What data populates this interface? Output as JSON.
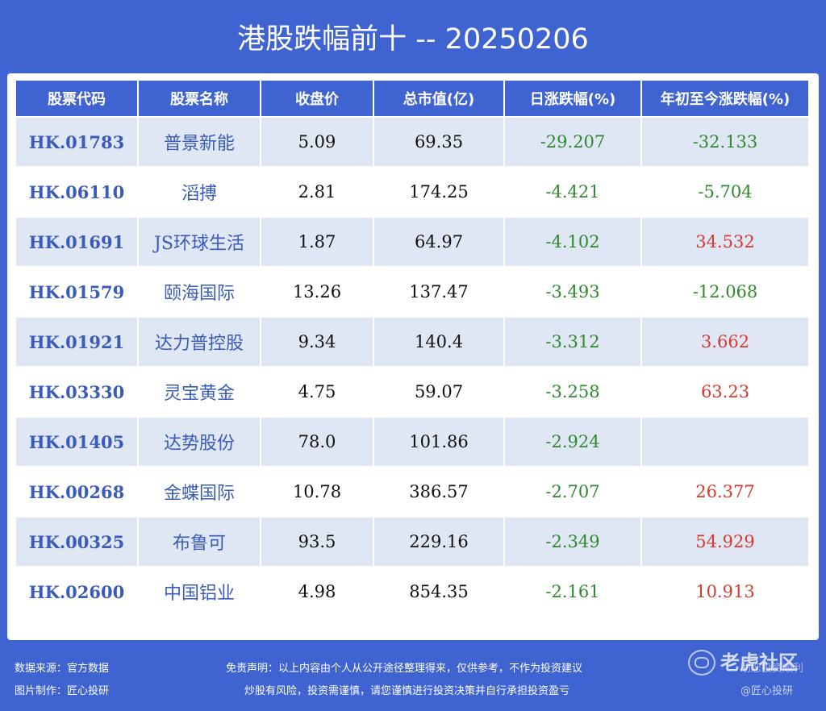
{
  "title": "港股跌幅前十 -- 20250206",
  "table": {
    "headers": [
      "股票代码",
      "股票名称",
      "收盘价",
      "总市值(亿)",
      "日涨跌幅(%)",
      "年初至今涨跌幅(%)"
    ],
    "rows": [
      {
        "code": "HK.01783",
        "name": "普景新能",
        "close": "5.09",
        "mcap": "69.35",
        "day": "-29.207",
        "ytd": "-32.133"
      },
      {
        "code": "HK.06110",
        "name": "滔搏",
        "close": "2.81",
        "mcap": "174.25",
        "day": "-4.421",
        "ytd": "-5.704"
      },
      {
        "code": "HK.01691",
        "name": "JS环球生活",
        "close": "1.87",
        "mcap": "64.97",
        "day": "-4.102",
        "ytd": "34.532"
      },
      {
        "code": "HK.01579",
        "name": "颐海国际",
        "close": "13.26",
        "mcap": "137.47",
        "day": "-3.493",
        "ytd": "-12.068"
      },
      {
        "code": "HK.01921",
        "name": "达力普控股",
        "close": "9.34",
        "mcap": "140.4",
        "day": "-3.312",
        "ytd": "3.662"
      },
      {
        "code": "HK.03330",
        "name": "灵宝黄金",
        "close": "4.75",
        "mcap": "59.07",
        "day": "-3.258",
        "ytd": "63.23"
      },
      {
        "code": "HK.01405",
        "name": "达势股份",
        "close": "78.0",
        "mcap": "101.86",
        "day": "-2.924",
        "ytd": ""
      },
      {
        "code": "HK.00268",
        "name": "金蝶国际",
        "close": "10.78",
        "mcap": "386.57",
        "day": "-2.707",
        "ytd": "26.377"
      },
      {
        "code": "HK.00325",
        "name": "布鲁可",
        "close": "93.5",
        "mcap": "229.16",
        "day": "-2.349",
        "ytd": "54.929"
      },
      {
        "code": "HK.02600",
        "name": "中国铝业",
        "close": "4.98",
        "mcap": "854.35",
        "day": "-2.161",
        "ytd": "10.913"
      }
    ]
  },
  "footer": {
    "source": "数据来源：官方数据",
    "maker": "图片制作：匠心投研",
    "disclaimer1": "免责声明：以上内容由个人从公开途径整理得来，仅供参考，不作为投资建议",
    "disclaimer2": "炒股有风险，投资需谨慎，请您谨慎进行投资决策并自行承担投资盈亏",
    "watermark": "老虎社区",
    "watermark_sub1": "助您投资顺利",
    "watermark_sub2": "@匠心投研",
    "watermark_icon": "tiger-logo-icon"
  },
  "colors": {
    "background": "#3f63d0",
    "row_alt": "#dfe6f4",
    "code_text": "#3a5cb8",
    "negative": "#2f8a2f",
    "positive": "#d83a2c"
  }
}
